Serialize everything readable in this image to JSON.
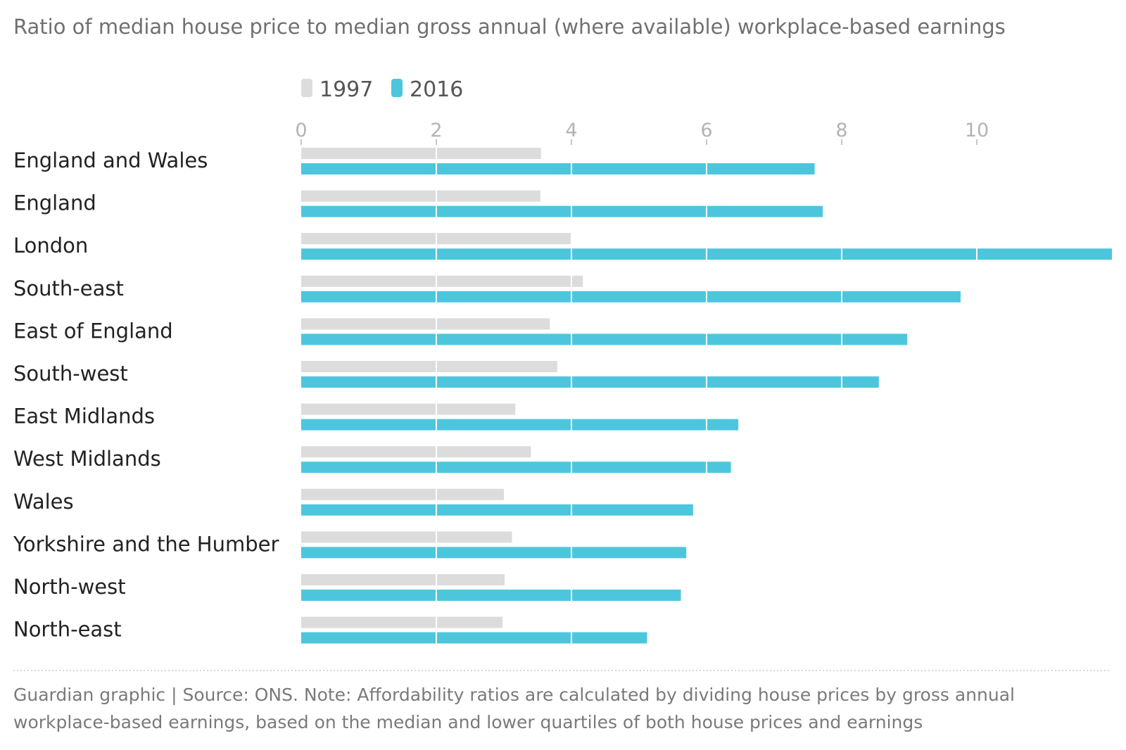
{
  "chart_data": {
    "type": "bar",
    "orientation": "horizontal",
    "title": "Ratio of median house price to median gross annual (where available) workplace-based earnings",
    "categories": [
      "England and Wales",
      "England",
      "London",
      "South-east",
      "East of England",
      "South-west",
      "East Midlands",
      "West Midlands",
      "Wales",
      "Yorkshire and the Humber",
      "North-west",
      "North-east"
    ],
    "series": [
      {
        "name": "1997",
        "color": "#dcdcdc",
        "values": [
          3.55,
          3.54,
          4.0,
          4.17,
          3.68,
          3.79,
          3.17,
          3.4,
          3.0,
          3.12,
          3.01,
          2.98
        ]
      },
      {
        "name": "2016",
        "color": "#4dc6dd",
        "values": [
          7.6,
          7.72,
          12.0,
          9.76,
          8.97,
          8.55,
          6.47,
          6.36,
          5.8,
          5.7,
          5.62,
          5.12
        ]
      }
    ],
    "xlim": [
      0,
      12
    ],
    "xticks": [
      0,
      2,
      4,
      6,
      8,
      10
    ],
    "xtick_labels": [
      "0",
      "2",
      "4",
      "6",
      "8",
      "10"
    ],
    "xlabel": "",
    "ylabel": "",
    "grid": true,
    "legend": "top"
  },
  "footer": {
    "source_line1": "Guardian graphic | Source: ONS. Note: Affordability ratios are calculated by dividing house prices by gross annual",
    "source_line2": "workplace-based earnings, based on the median and lower quartiles of both house prices and earnings"
  }
}
